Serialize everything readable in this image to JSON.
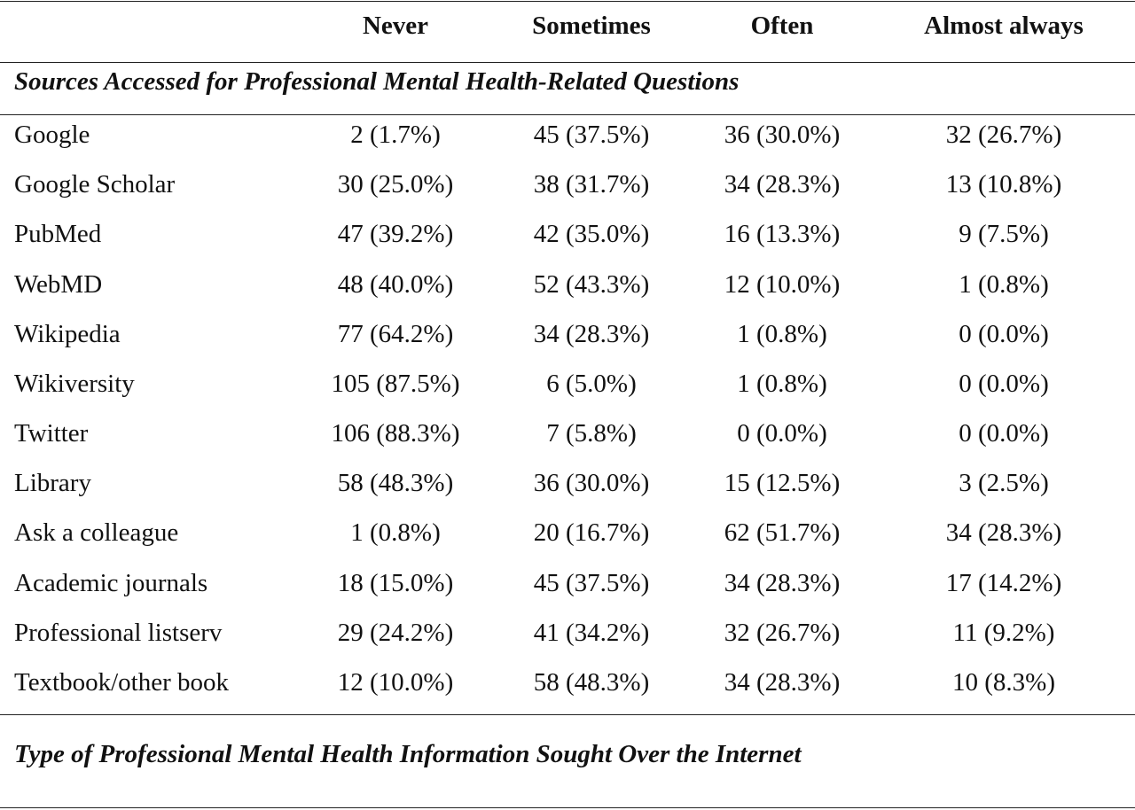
{
  "table": {
    "columns": [
      "Never",
      "Sometimes",
      "Often",
      "Almost always"
    ],
    "sections": [
      {
        "title": "Sources Accessed for Professional Mental Health-Related Questions",
        "rows": [
          {
            "label": "Google",
            "values": [
              "2 (1.7%)",
              "45 (37.5%)",
              "36 (30.0%)",
              "32 (26.7%)"
            ]
          },
          {
            "label": "Google Scholar",
            "values": [
              "30 (25.0%)",
              "38 (31.7%)",
              "34 (28.3%)",
              "13 (10.8%)"
            ]
          },
          {
            "label": "PubMed",
            "values": [
              "47 (39.2%)",
              "42 (35.0%)",
              "16 (13.3%)",
              "9 (7.5%)"
            ]
          },
          {
            "label": "WebMD",
            "values": [
              "48 (40.0%)",
              "52 (43.3%)",
              "12 (10.0%)",
              "1 (0.8%)"
            ]
          },
          {
            "label": "Wikipedia",
            "values": [
              "77 (64.2%)",
              "34 (28.3%)",
              "1 (0.8%)",
              "0 (0.0%)"
            ]
          },
          {
            "label": "Wikiversity",
            "values": [
              "105 (87.5%)",
              "6 (5.0%)",
              "1 (0.8%)",
              "0 (0.0%)"
            ]
          },
          {
            "label": "Twitter",
            "values": [
              "106 (88.3%)",
              "7 (5.8%)",
              "0 (0.0%)",
              "0 (0.0%)"
            ]
          },
          {
            "label": "Library",
            "values": [
              "58 (48.3%)",
              "36 (30.0%)",
              "15 (12.5%)",
              "3 (2.5%)"
            ]
          },
          {
            "label": "Ask a colleague",
            "values": [
              "1 (0.8%)",
              "20 (16.7%)",
              "62 (51.7%)",
              "34 (28.3%)"
            ]
          },
          {
            "label": "Academic journals",
            "values": [
              "18 (15.0%)",
              "45 (37.5%)",
              "34 (28.3%)",
              "17 (14.2%)"
            ]
          },
          {
            "label": "Professional listserv",
            "values": [
              "29 (24.2%)",
              "41 (34.2%)",
              "32 (26.7%)",
              "11 (9.2%)"
            ]
          },
          {
            "label": "Textbook/other book",
            "values": [
              "12 (10.0%)",
              "58 (48.3%)",
              "34 (28.3%)",
              "10 (8.3%)"
            ]
          }
        ]
      },
      {
        "title": "Type of Professional Mental Health Information Sought Over the Internet",
        "rows": []
      }
    ]
  }
}
